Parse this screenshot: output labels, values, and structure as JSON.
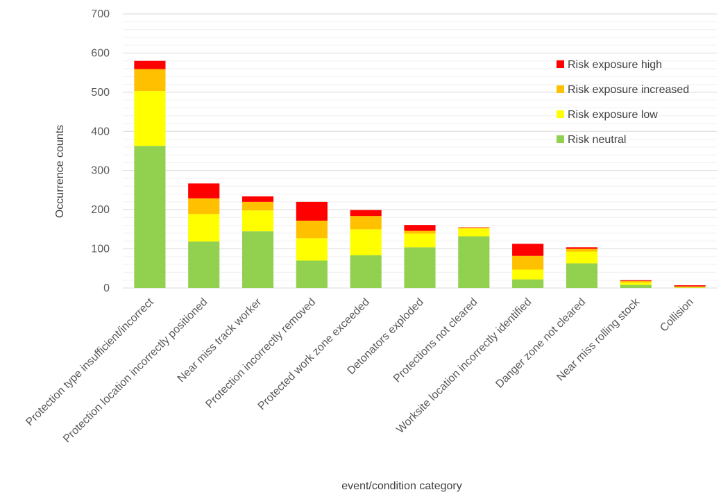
{
  "chart_data": {
    "type": "bar",
    "stacked": true,
    "title": "",
    "xlabel": "event/condition category",
    "ylabel": "Occurrence counts",
    "ylim": [
      0,
      700
    ],
    "yticks": [
      0,
      100,
      200,
      300,
      400,
      500,
      600,
      700
    ],
    "grid": "horizontal major and minor lines",
    "legend_position": "top-right",
    "categories": [
      "Protection type insufficient/incorrect",
      "Protection location incorrectly positioned",
      "Near miss track worker",
      "Protection incorrectly removed",
      "Protected work zone exceeded",
      "Detonators exploded",
      "Protections not cleared",
      "Worksite location incorrectly identified",
      "Danger zone not cleared",
      "Near miss rolling stock",
      "Collision"
    ],
    "series": [
      {
        "name": "Risk neutral",
        "color": "#92D050",
        "values": [
          363,
          119,
          145,
          70,
          84,
          104,
          132,
          22,
          63,
          8,
          1
        ]
      },
      {
        "name": "Risk exposure low",
        "color": "#FFFF00",
        "values": [
          140,
          70,
          53,
          57,
          66,
          35,
          20,
          25,
          30,
          6,
          1
        ]
      },
      {
        "name": "Risk exposure increased",
        "color": "#FFC000",
        "values": [
          56,
          40,
          22,
          45,
          34,
          7,
          2,
          35,
          7,
          4,
          2
        ]
      },
      {
        "name": "Risk exposure high",
        "color": "#FF0000",
        "values": [
          21,
          38,
          14,
          48,
          15,
          15,
          1,
          31,
          4,
          2,
          3
        ]
      }
    ],
    "legend_order": [
      "Risk exposure high",
      "Risk exposure increased",
      "Risk exposure low",
      "Risk neutral"
    ]
  }
}
